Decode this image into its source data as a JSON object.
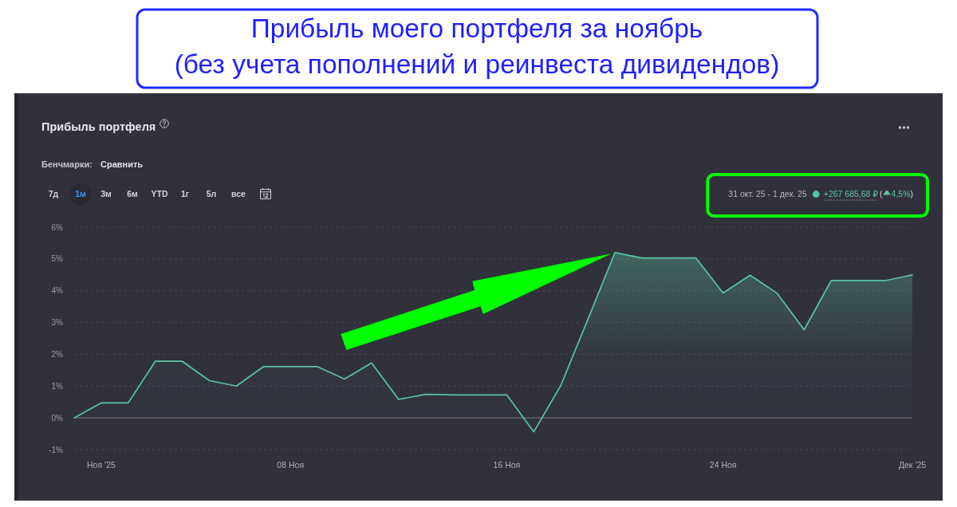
{
  "chart_data": {
    "type": "area",
    "title": "Прибыль моего портфеля за ноябрь",
    "subtitle": "(без учета пополнений и реинвеста дивидендов)",
    "x": [
      "2025-10-31",
      "2025-11-01",
      "2025-11-02",
      "2025-11-03",
      "2025-11-04",
      "2025-11-05",
      "2025-11-06",
      "2025-11-07",
      "2025-11-08",
      "2025-11-09",
      "2025-11-10",
      "2025-11-11",
      "2025-11-12",
      "2025-11-13",
      "2025-11-14",
      "2025-11-15",
      "2025-11-16",
      "2025-11-17",
      "2025-11-18",
      "2025-11-19",
      "2025-11-20",
      "2025-11-21",
      "2025-11-22",
      "2025-11-23",
      "2025-11-24",
      "2025-11-25",
      "2025-11-26",
      "2025-11-27",
      "2025-11-28",
      "2025-11-29",
      "2025-11-30",
      "2025-12-01"
    ],
    "series": [
      {
        "color": "#5bc49f",
        "values": [
          0,
          0.47,
          0.47,
          1.78,
          1.78,
          1.17,
          1.0,
          1.61,
          1.61,
          1.61,
          1.22,
          1.73,
          0.58,
          0.74,
          0.72,
          0.72,
          0.72,
          -0.44,
          1.02,
          3.1,
          5.2,
          5.03,
          5.03,
          5.03,
          3.93,
          4.49,
          3.92,
          2.77,
          4.32,
          4.32,
          4.32,
          4.5
        ]
      }
    ],
    "xlim": [
      "2025-10-31",
      "2025-12-01"
    ],
    "xticks": [
      {
        "value": "2025-11-01",
        "label": "Ноя '25"
      },
      {
        "value": "2025-11-08",
        "label": "08 Ноя"
      },
      {
        "value": "2025-11-16",
        "label": "16 Ноя"
      },
      {
        "value": "2025-11-24",
        "label": "24 Ноя"
      },
      {
        "value": "2025-12-01",
        "label": "Дек '25"
      }
    ],
    "ylim": [
      -1,
      6
    ],
    "yticks": [
      {
        "value": -1,
        "label": "-1%"
      },
      {
        "value": 0,
        "label": "0%"
      },
      {
        "value": 1,
        "label": "1%"
      },
      {
        "value": 2,
        "label": "2%"
      },
      {
        "value": 3,
        "label": "3%"
      },
      {
        "value": 4,
        "label": "4%"
      },
      {
        "value": 5,
        "label": "5%"
      },
      {
        "value": 6,
        "label": "6%"
      }
    ],
    "grid": "y",
    "ref_lines": [
      {
        "axis": "y",
        "value": 0,
        "color": "#75757f"
      }
    ],
    "annotations": [
      "Прибыль портфеля",
      "Бенчмарки:",
      "Сравнить",
      "7д",
      "1м",
      "3м",
      "6м",
      "YTD",
      "1г",
      "5л",
      "все",
      "31 окт. 25 - 1 дек. 25",
      "+267 685,68 ₽",
      "(",
      "4,5%",
      ")"
    ]
  }
}
